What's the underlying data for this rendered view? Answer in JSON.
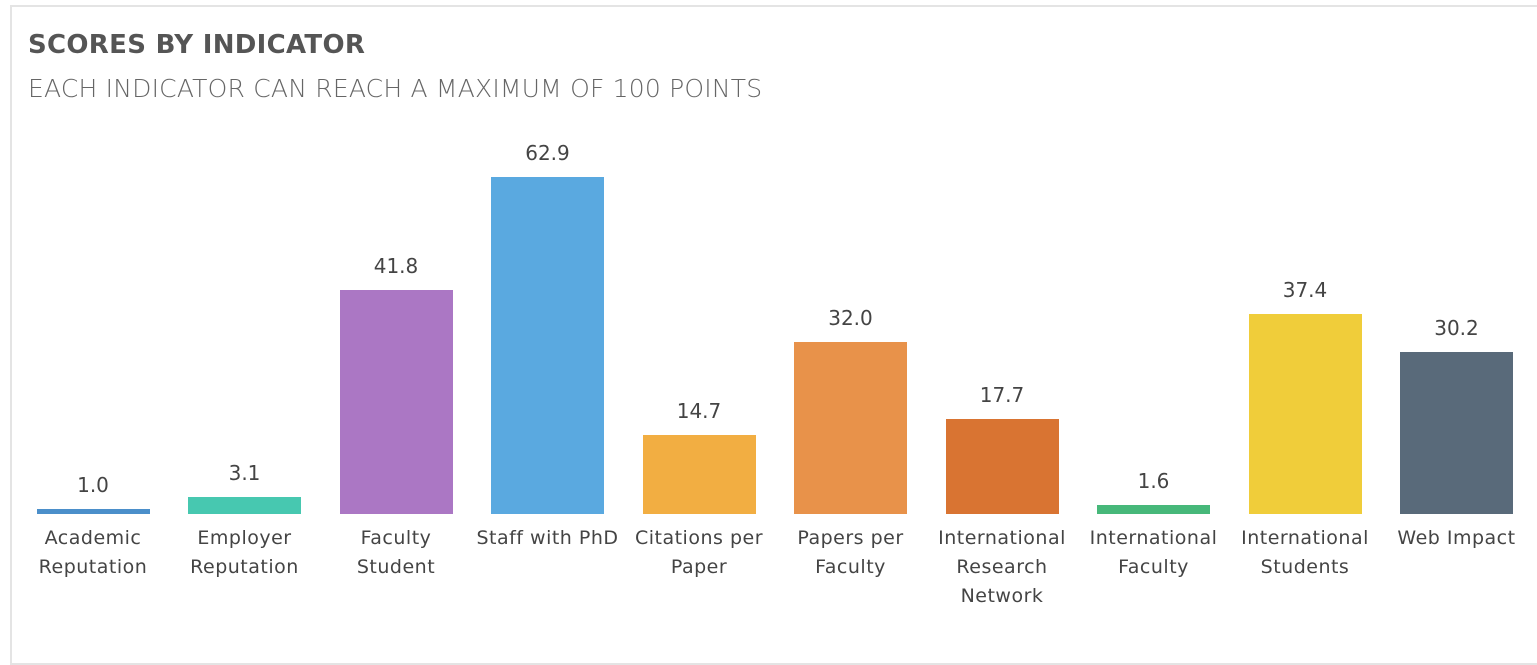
{
  "chart_data": {
    "type": "bar",
    "title": "SCORES BY INDICATOR",
    "subtitle": "EACH INDICATOR CAN REACH A MAXIMUM OF 100 POINTS",
    "categories": [
      "Academic Reputation",
      "Employer Reputation",
      "Faculty Student",
      "Staff with PhD",
      "Citations per Paper",
      "Papers per Faculty",
      "International Research Network",
      "International Faculty",
      "International Students",
      "Web Impact"
    ],
    "values": [
      1.0,
      3.1,
      41.8,
      62.9,
      14.7,
      32.0,
      17.7,
      1.6,
      37.4,
      30.2
    ],
    "value_labels": [
      "1.0",
      "3.1",
      "41.8",
      "62.9",
      "14.7",
      "32.0",
      "17.7",
      "1.6",
      "37.4",
      "30.2"
    ],
    "colors": [
      "#4b8fca",
      "#47c8b0",
      "#ab77c4",
      "#5aa9e0",
      "#f2ae42",
      "#e8924a",
      "#d97432",
      "#47b87a",
      "#f0cd3a",
      "#596a7a"
    ]
  }
}
